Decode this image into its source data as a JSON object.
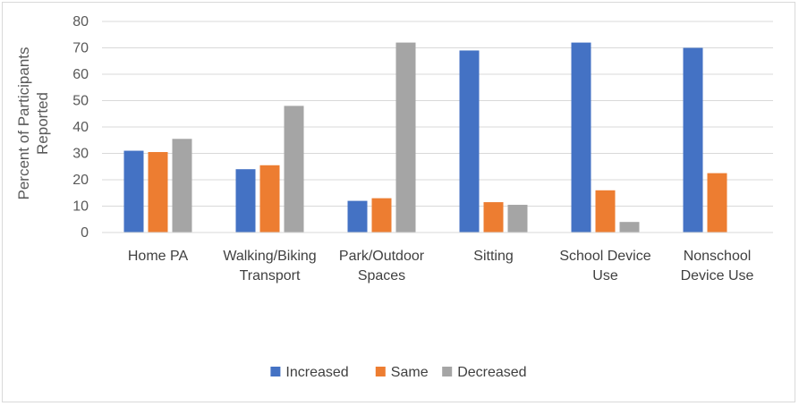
{
  "chart_data": {
    "type": "bar",
    "title": "",
    "xlabel": "",
    "ylabel_lines": [
      "Percent of Participants",
      "Reported"
    ],
    "ylim": [
      0,
      80
    ],
    "y_ticks": [
      0,
      10,
      20,
      30,
      40,
      50,
      60,
      70,
      80
    ],
    "grid": true,
    "legend_position": "bottom",
    "categories": [
      [
        "Home PA"
      ],
      [
        "Walking/Biking",
        "Transport"
      ],
      [
        "Park/Outdoor",
        "Spaces"
      ],
      [
        "Sitting"
      ],
      [
        "School Device",
        "Use"
      ],
      [
        "Nonschool",
        "Device Use"
      ]
    ],
    "series": [
      {
        "name": "Increased",
        "color": "#4472c4",
        "values": [
          31,
          24,
          12,
          69,
          72,
          70
        ]
      },
      {
        "name": "Same",
        "color": "#ed7d31",
        "values": [
          30.5,
          25.5,
          13,
          11.5,
          16,
          22.5
        ]
      },
      {
        "name": "Decreased",
        "color": "#a5a5a5",
        "values": [
          35.5,
          48,
          72,
          10.5,
          4,
          0
        ]
      }
    ]
  }
}
